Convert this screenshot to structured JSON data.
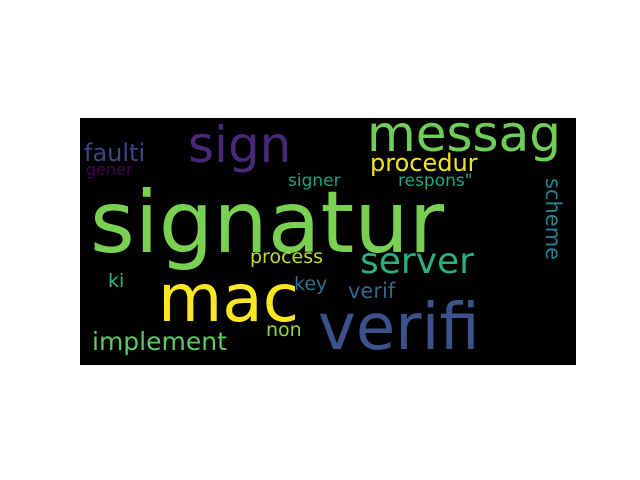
{
  "words": [
    {
      "text": "signatur",
      "color": "#7ad151"
    },
    {
      "text": "verifi",
      "color": "#3b528b"
    },
    {
      "text": "mac",
      "color": "#fde725"
    },
    {
      "text": "messag",
      "color": "#6ece58"
    },
    {
      "text": "sign",
      "color": "#482878"
    },
    {
      "text": "server",
      "color": "#2ab07f"
    },
    {
      "text": "procedur",
      "color": "#f1e51d"
    },
    {
      "text": "implement",
      "color": "#5ec962"
    },
    {
      "text": "faulti",
      "color": "#414487"
    },
    {
      "text": "gener",
      "color": "#440154"
    },
    {
      "text": "signer",
      "color": "#1fa187"
    },
    {
      "text": "respons\"",
      "color": "#22a884"
    },
    {
      "text": "process",
      "color": "#bddf26"
    },
    {
      "text": "key",
      "color": "#2c728e"
    },
    {
      "text": "verif",
      "color": "#31688e"
    },
    {
      "text": "ki",
      "color": "#35b779"
    },
    {
      "text": "non",
      "color": "#90d743"
    },
    {
      "text": "scheme",
      "color": "#26828e"
    }
  ]
}
